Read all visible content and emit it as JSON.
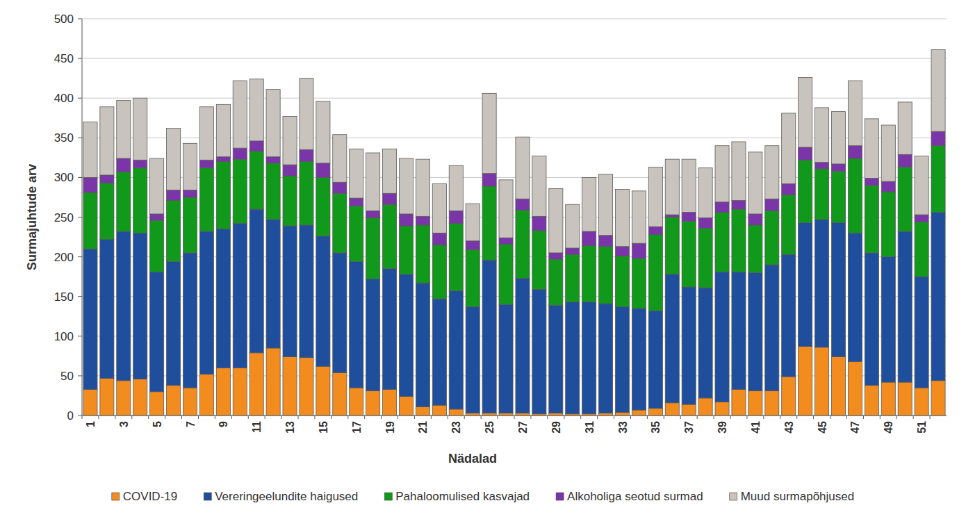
{
  "chart_data": {
    "type": "bar",
    "stacked": true,
    "grid": true,
    "legend": "bottom",
    "x_label": "Nädalad",
    "y_label": "Surmajuhtude arv",
    "ylim": [
      0,
      500
    ],
    "yticks": [
      0,
      50,
      100,
      150,
      200,
      250,
      300,
      350,
      400,
      450,
      500
    ],
    "categories": [
      "1",
      null,
      "3",
      null,
      "5",
      null,
      "7",
      null,
      "9",
      null,
      "11",
      null,
      "13",
      null,
      "15",
      null,
      "17",
      null,
      "19",
      null,
      "21",
      null,
      "23",
      null,
      "25",
      null,
      "27",
      null,
      "29",
      null,
      "31",
      null,
      "33",
      null,
      "35",
      null,
      "37",
      null,
      "39",
      null,
      "41",
      null,
      "43",
      null,
      "45",
      null,
      "47",
      null,
      "49",
      null,
      "51",
      null
    ],
    "series": [
      {
        "name": "COVID-19",
        "color": "#f28c1e",
        "values": [
          33,
          47,
          44,
          46,
          30,
          38,
          35,
          52,
          60,
          60,
          79,
          85,
          74,
          73,
          62,
          54,
          35,
          31,
          33,
          24,
          11,
          13,
          8,
          3,
          3,
          3,
          3,
          2,
          3,
          2,
          2,
          3,
          4,
          7,
          9,
          16,
          14,
          22,
          17,
          33,
          31,
          31,
          49,
          87,
          86,
          74,
          68,
          38,
          42,
          42,
          35,
          44
        ]
      },
      {
        "name": "Vereringeelundite haigused",
        "color": "#1f4e9c",
        "values": [
          177,
          175,
          188,
          184,
          151,
          156,
          170,
          180,
          175,
          182,
          181,
          162,
          165,
          167,
          164,
          151,
          159,
          141,
          152,
          154,
          156,
          134,
          149,
          134,
          193,
          137,
          170,
          157,
          136,
          141,
          141,
          138,
          133,
          128,
          123,
          162,
          148,
          139,
          164,
          148,
          149,
          159,
          154,
          156,
          161,
          169,
          162,
          167,
          158,
          190,
          140,
          212
        ]
      },
      {
        "name": "Pahaloomulised kasvajad",
        "color": "#10991a",
        "values": [
          71,
          71,
          75,
          82,
          65,
          77,
          70,
          80,
          85,
          81,
          73,
          71,
          63,
          80,
          74,
          75,
          70,
          77,
          81,
          61,
          73,
          68,
          85,
          72,
          93,
          76,
          86,
          74,
          58,
          60,
          71,
          72,
          64,
          63,
          96,
          72,
          83,
          75,
          75,
          79,
          60,
          68,
          75,
          79,
          64,
          65,
          94,
          85,
          82,
          81,
          69,
          84
        ]
      },
      {
        "name": "Alkoholiga seotud surmad",
        "color": "#7a35a8",
        "values": [
          19,
          10,
          17,
          10,
          8,
          13,
          9,
          10,
          6,
          14,
          13,
          8,
          14,
          15,
          18,
          14,
          10,
          9,
          14,
          15,
          11,
          15,
          16,
          11,
          16,
          8,
          14,
          18,
          8,
          8,
          18,
          14,
          12,
          19,
          10,
          3,
          11,
          13,
          13,
          11,
          14,
          15,
          14,
          16,
          8,
          9,
          16,
          9,
          13,
          16,
          9,
          18
        ]
      },
      {
        "name": "Muud surmapõhjused",
        "color": "#c9c3be",
        "values": [
          70,
          86,
          73,
          78,
          70,
          78,
          59,
          67,
          66,
          85,
          78,
          85,
          61,
          90,
          78,
          60,
          62,
          73,
          56,
          70,
          72,
          62,
          57,
          47,
          101,
          73,
          78,
          76,
          81,
          55,
          68,
          77,
          72,
          66,
          75,
          70,
          67,
          63,
          71,
          74,
          78,
          67,
          89,
          88,
          69,
          66,
          82,
          75,
          71,
          66,
          74,
          103
        ]
      }
    ]
  }
}
